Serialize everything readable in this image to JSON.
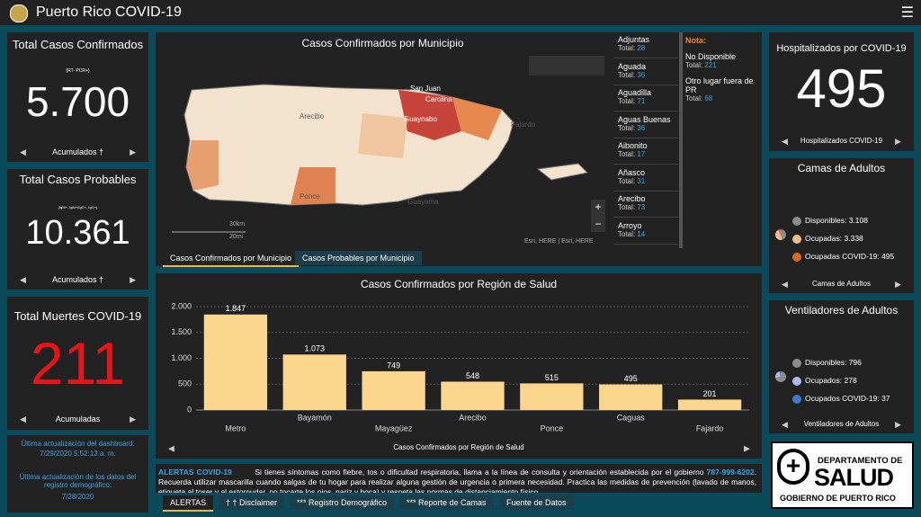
{
  "header": {
    "title": "Puerto Rico COVID-19"
  },
  "confirmed": {
    "title": "Total Casos Confirmados",
    "subtitle": "(RT- PCR+)",
    "value": "5.700",
    "footer": "Acumulados †"
  },
  "probable": {
    "title": "Total Casos Probables",
    "subtitle": "(IgM+, IgM+/IgG+, IgG+)",
    "value": "10.361",
    "footer": "Acumulados †"
  },
  "deaths": {
    "title": "Total Muertes COVID-19",
    "value": "211",
    "footer": "Acumuladas"
  },
  "updates": {
    "dashboard_label": "Última actualización del dashboard:",
    "dashboard_date": "7/29/2020 5:52:13 a. m.",
    "registry_label": "Última actualización de los datos del registro demográfico:",
    "registry_date": "7/28/2020"
  },
  "map": {
    "title": "Casos Confirmados por Municipio",
    "place_labels": [
      "San Juan",
      "Carolina",
      "Guaynabo",
      "Arecibo",
      "Ponce",
      "Guayama",
      "Fajardo"
    ],
    "scale_km": "30km",
    "scale_mi": "20mi",
    "attribution": "Esri, HERE | Esri, HERE",
    "tabs": [
      "Casos Confirmados por Municipio",
      "Casos Probables por Municipio"
    ]
  },
  "municipios": {
    "total_label": "Total:",
    "items": [
      {
        "name": "Adjuntas",
        "total": 28
      },
      {
        "name": "Aguada",
        "total": 36
      },
      {
        "name": "Aguadilla",
        "total": 71
      },
      {
        "name": "Aguas Buenas",
        "total": 36
      },
      {
        "name": "Aibonito",
        "total": 17
      },
      {
        "name": "Añasco",
        "total": 31
      },
      {
        "name": "Arecibo",
        "total": 73
      },
      {
        "name": "Arroyo",
        "total": 14
      }
    ]
  },
  "nota": {
    "title": "Nota:",
    "items": [
      {
        "name": "No Disponible",
        "total": 221
      },
      {
        "name": "Otro lugar fuera de PR",
        "total": 68
      }
    ]
  },
  "region_chart": {
    "type": "bar",
    "title": "Casos Confirmados por Región de Salud",
    "categories": [
      "Metro",
      "Bayamón",
      "Mayagüez",
      "Arecibo",
      "Ponce",
      "Caguas",
      "Fajardo"
    ],
    "values": [
      1847,
      1073,
      749,
      548,
      515,
      495,
      201
    ],
    "value_labels": [
      "1.847",
      "1.073",
      "749",
      "548",
      "515",
      "495",
      "201"
    ],
    "color": "#fdd68d",
    "ylim": [
      0,
      2000
    ],
    "yticks": [
      0,
      500,
      {
        "value": 1000,
        "label": "1.000"
      },
      {
        "value": 1500,
        "label": "1.500"
      },
      {
        "value": 2000,
        "label": "2.000"
      }
    ],
    "grid": true,
    "footer": "Casos Confirmados por Región de Salud"
  },
  "alert": {
    "title": "ALERTAS COVID-19",
    "text_1": "Si tienes síntomas como fiebre, tos o dificultad respiratoria, llama a la línea de consulta y orientación establecida por el gobierno",
    "phone": "787-999-6202",
    "text_2": ". Recuerda utilizar mascarilla cuando salgas de tu hogar para realizar alguna gestión de urgencia o primera necesidad. Practica las medidas de prevención (lavado de manos, etiqueta al toser y al estornudar, no tocarte los ojos, nariz y boca) y respeta las normas de distanciamiento físico."
  },
  "bottom_tabs": [
    "ALERTAS",
    "† † Disclaimer",
    "*** Registro Demográfico",
    "*** Reporte de Camas",
    "Fuente de Datos"
  ],
  "hospitalized": {
    "title": "Hospitalizados por COVID-19",
    "value": 495,
    "footer": "Hospitalizados COVID-19"
  },
  "beds": {
    "type": "pie",
    "title": "Camas de Adultos",
    "categories": [
      "Disponibles:",
      "Ocupadas:",
      "Ocupadas COVID-19:"
    ],
    "values": [
      3108,
      3338,
      495
    ],
    "value_labels": [
      "3.108",
      "3.338",
      "495"
    ],
    "colors": [
      "#8c8c8c",
      "#f7b98c",
      "#d8691f"
    ],
    "footer": "Camas de Adultos"
  },
  "ventilators": {
    "type": "pie",
    "title": "Ventiladores de Adultos",
    "categories": [
      "Disponibles:",
      "Ocupados:",
      "Ocupados COVID-19:"
    ],
    "values": [
      796,
      278,
      37
    ],
    "colors": [
      "#8c8c8c",
      "#aab9ef",
      "#3b7bd0"
    ],
    "footer": "Ventiladores de Adultos"
  },
  "logo": {
    "line1": "DEPARTAMENTO DE",
    "line2": "SALUD",
    "line3": "GOBIERNO DE PUERTO RICO"
  }
}
